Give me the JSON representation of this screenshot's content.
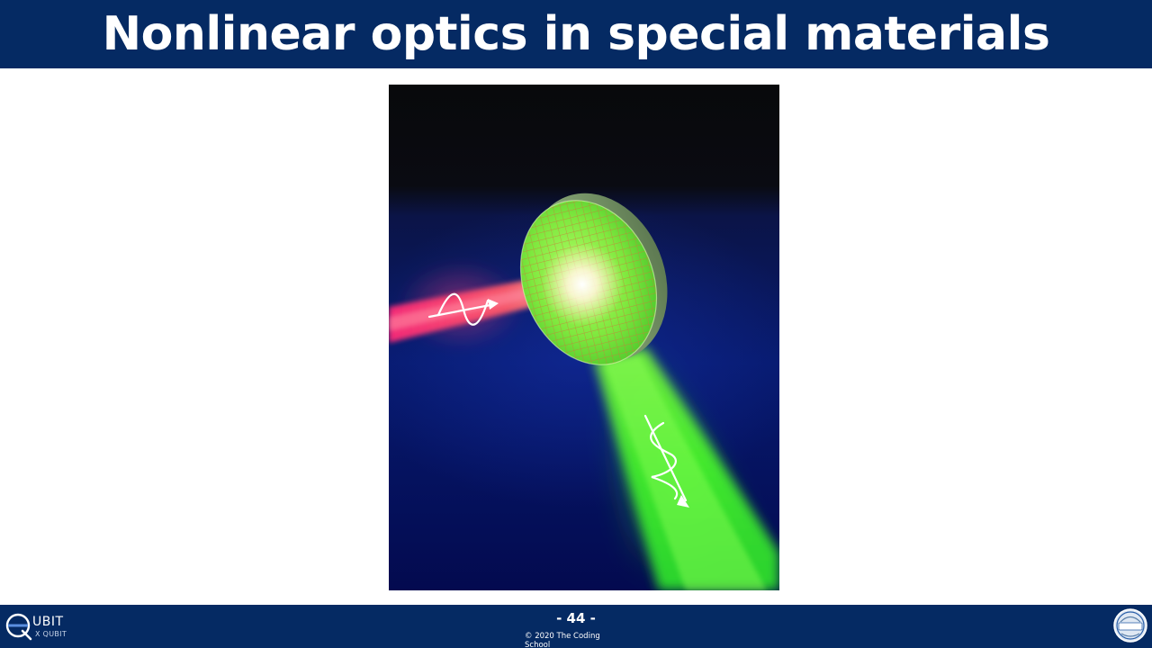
{
  "slide": {
    "title": "Nonlinear optics in special materials"
  },
  "footer": {
    "page_number": "- 44 -",
    "copyright": "© 2020 The Coding School",
    "left_logo": {
      "main_text": "UBIT",
      "sub_text": "X QUBIT"
    },
    "right_logo": {
      "text": "<Coding School>"
    }
  },
  "colors": {
    "brand_navy": "#052a63",
    "laser_red": "#ff3366",
    "laser_green": "#33ff33",
    "background": "#ffffff"
  }
}
